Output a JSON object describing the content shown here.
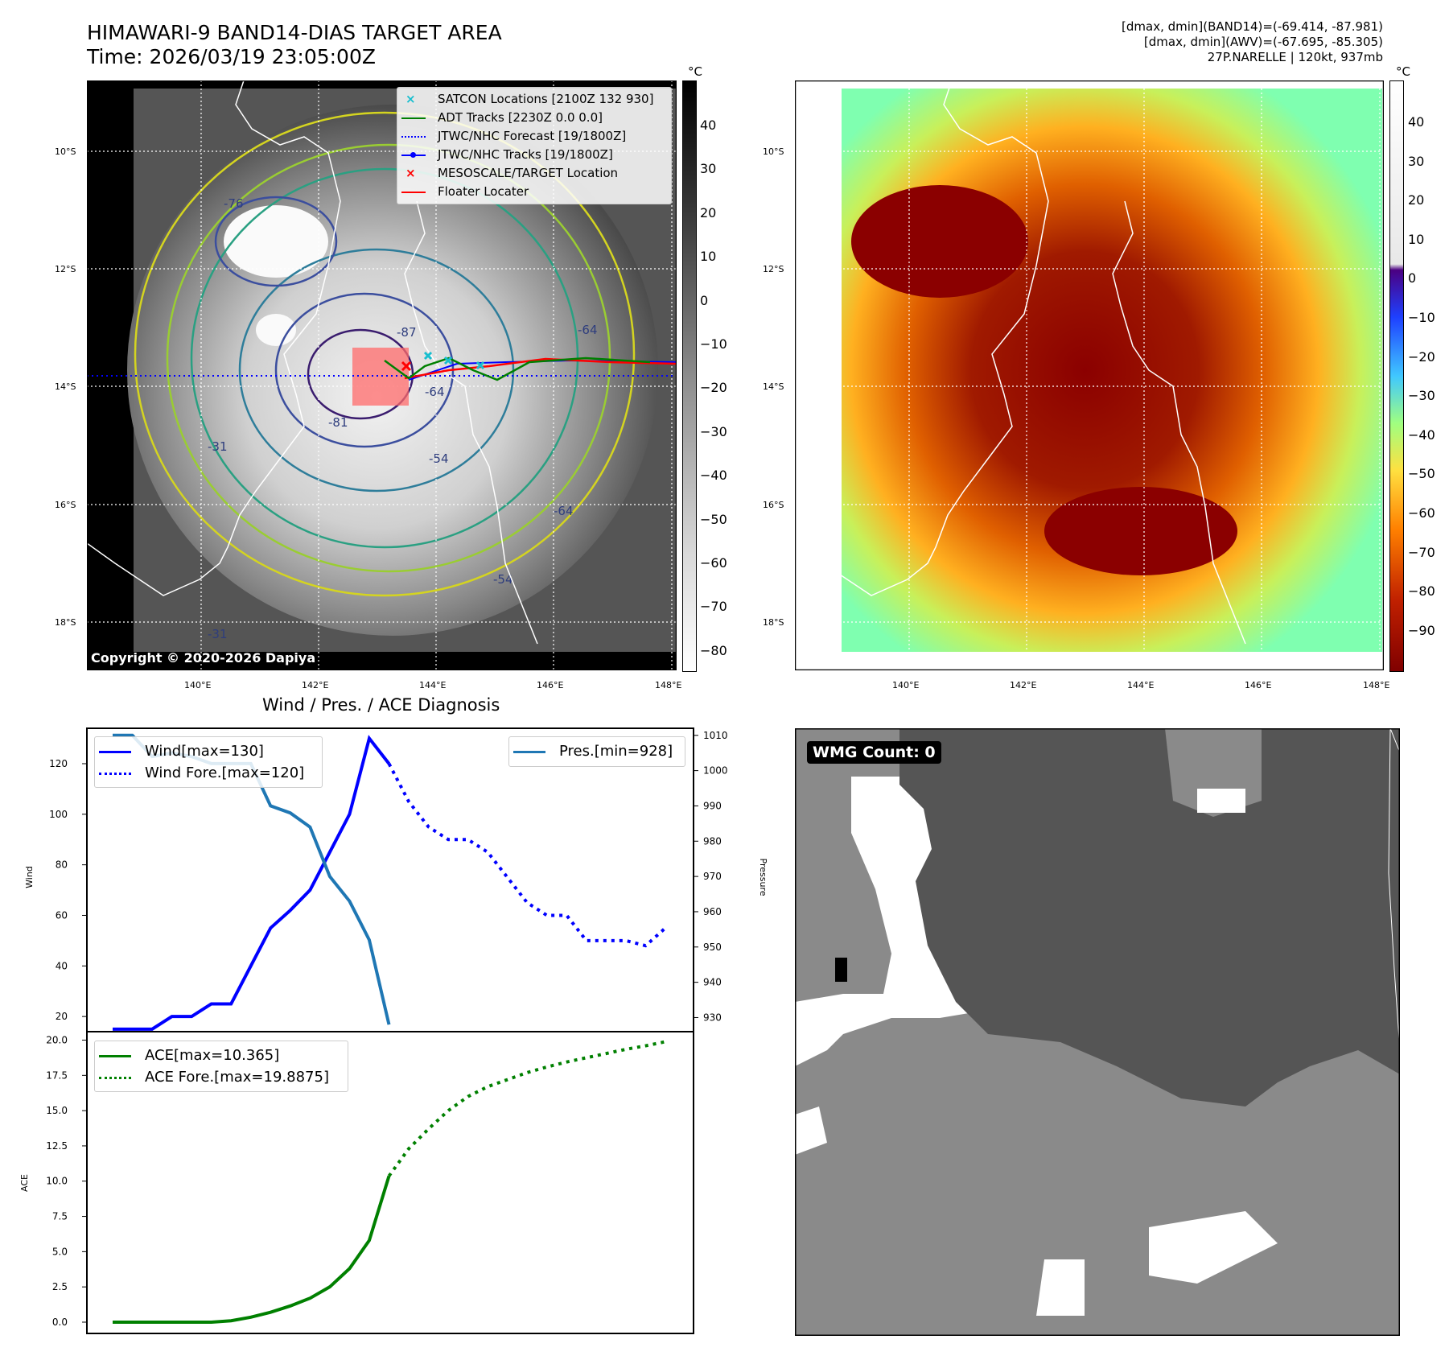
{
  "header": {
    "title_line1": "HIMAWARI-9 BAND14-DIAS TARGET AREA",
    "title_line2": "Time: 2026/03/19 23:05:00Z",
    "right_line1": "[dmax, dmin](BAND14)=(-69.414, -87.981)",
    "right_line2": "[dmax, dmin](AWV)=(-67.695, -85.305)",
    "right_line3": "27P.NARELLE | 120kt, 937mb"
  },
  "map": {
    "lat_labels": [
      "10°S",
      "12°S",
      "14°S",
      "16°S",
      "18°S"
    ],
    "lon_labels": [
      "140°E",
      "142°E",
      "144°E",
      "146°E",
      "148°E"
    ],
    "copyright": "Copyright © 2020-2026 Dapiya",
    "unit": "°C",
    "contour_labels": [
      "-76",
      "-87",
      "-81",
      "-64",
      "-54",
      "-64",
      "-54",
      "-31",
      "-31",
      "-64"
    ],
    "legend": [
      {
        "marker": "x",
        "color": "#17becf",
        "label": "SATCON Locations [2100Z 132 930]"
      },
      {
        "marker": "line",
        "color": "#008000",
        "label": "ADT Tracks [2230Z 0.0 0.0]"
      },
      {
        "marker": "dotted",
        "color": "#0000ff",
        "label": "JTWC/NHC Forecast [19/1800Z]"
      },
      {
        "marker": "line-dot",
        "color": "#0000ff",
        "label": "JTWC/NHC Tracks [19/1800Z]"
      },
      {
        "marker": "x",
        "color": "#ff0000",
        "label": "MESOSCALE/TARGET Location"
      },
      {
        "marker": "line",
        "color": "#ff0000",
        "label": "Floater Locater"
      }
    ],
    "colorbar_gray_ticks": [
      "40",
      "30",
      "20",
      "10",
      "0",
      "−10",
      "−20",
      "−30",
      "−40",
      "−50",
      "−60",
      "−70",
      "−80"
    ],
    "colorbar_awv_ticks": [
      "40",
      "30",
      "20",
      "10",
      "0",
      "−10",
      "−20",
      "−30",
      "−40",
      "−50",
      "−60",
      "−70",
      "−80",
      "−90"
    ]
  },
  "chart_data": [
    {
      "type": "line",
      "title": "Wind / Pres. / ACE Diagnosis",
      "ylabel": "Wind",
      "y2label": "Pressure",
      "ylim": [
        14,
        134
      ],
      "y2lim": [
        926,
        1012
      ],
      "yticks": [
        20,
        40,
        60,
        80,
        100,
        120
      ],
      "y2ticks": [
        930,
        940,
        950,
        960,
        970,
        980,
        990,
        1000,
        1010
      ],
      "series": [
        {
          "name": "Wind[max=130]",
          "color": "#0000ff",
          "style": "solid",
          "x": [
            0,
            1,
            2,
            3,
            4,
            5,
            6,
            7,
            8,
            9,
            10,
            11,
            12,
            13,
            14
          ],
          "values": [
            15,
            15,
            15,
            20,
            20,
            25,
            25,
            40,
            55,
            62,
            70,
            85,
            100,
            130,
            120
          ]
        },
        {
          "name": "Wind Fore.[max=120]",
          "color": "#0000ff",
          "style": "dotted",
          "x": [
            14,
            15,
            16,
            17,
            18,
            19,
            20,
            21,
            22,
            23,
            24,
            25,
            26,
            27,
            28
          ],
          "values": [
            120,
            105,
            95,
            90,
            90,
            85,
            75,
            65,
            60,
            60,
            50,
            50,
            50,
            48,
            55
          ]
        },
        {
          "name": "Pres.[min=928]",
          "color": "#1f77b4",
          "style": "solid",
          "axis": "right",
          "x": [
            0,
            1,
            2,
            3,
            4,
            5,
            6,
            7,
            8,
            9,
            10,
            11,
            12,
            13,
            14
          ],
          "values": [
            1010,
            1010,
            1004,
            1005,
            1004,
            1002,
            1002,
            1002,
            990,
            988,
            984,
            970,
            963,
            952,
            928
          ]
        }
      ]
    },
    {
      "type": "line",
      "ylabel": "ACE",
      "ylim": [
        -0.8,
        20.6
      ],
      "yticks": [
        "0.0",
        "2.5",
        "5.0",
        "7.5",
        "10.0",
        "12.5",
        "15.0",
        "17.5",
        "20.0"
      ],
      "series": [
        {
          "name": "ACE[max=10.365]",
          "color": "#008000",
          "style": "solid",
          "x": [
            0,
            1,
            2,
            3,
            4,
            5,
            6,
            7,
            8,
            9,
            10,
            11,
            12,
            13,
            14
          ],
          "values": [
            0,
            0,
            0,
            0,
            0,
            0,
            0.1,
            0.35,
            0.7,
            1.15,
            1.7,
            2.5,
            3.8,
            5.8,
            10.365
          ]
        },
        {
          "name": "ACE Fore.[max=19.8875]",
          "color": "#008000",
          "style": "dotted",
          "x": [
            14,
            15,
            16,
            17,
            18,
            19,
            20,
            21,
            22,
            23,
            24,
            25,
            26,
            27,
            28
          ],
          "values": [
            10.365,
            12.3,
            13.7,
            15.0,
            16.0,
            16.7,
            17.2,
            17.7,
            18.1,
            18.45,
            18.75,
            19.05,
            19.35,
            19.6,
            19.8875
          ]
        }
      ]
    }
  ],
  "wmg": {
    "label": "WMG Count: 0"
  }
}
